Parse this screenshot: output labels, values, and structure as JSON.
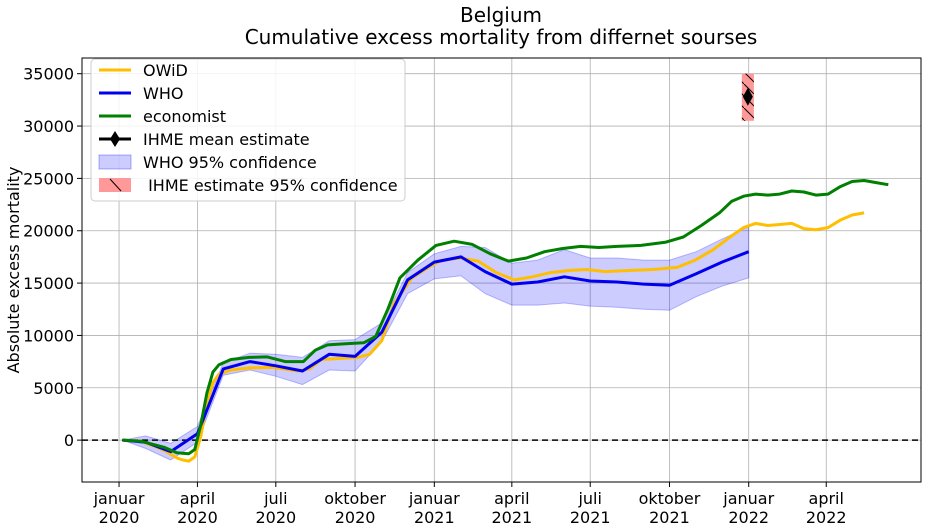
{
  "chart_data": {
    "type": "line",
    "title": "Belgium",
    "subtitle": "Cumulative excess mortality from differnet sourses",
    "ylabel": "Absolute excess mortality",
    "xlabel": "",
    "xlim": [
      "2019-11-19",
      "2022-07-20"
    ],
    "ylim": [
      -4000,
      36500
    ],
    "grid": true,
    "legend_position": "top-left",
    "y_ticks": [
      0,
      5000,
      10000,
      15000,
      20000,
      25000,
      30000,
      35000
    ],
    "x_ticks": [
      {
        "date": "2020-01-01",
        "line1": "januar",
        "line2": "2020"
      },
      {
        "date": "2020-04-01",
        "line1": "april",
        "line2": "2020"
      },
      {
        "date": "2020-07-01",
        "line1": "juli",
        "line2": "2020"
      },
      {
        "date": "2020-10-01",
        "line1": "oktober",
        "line2": "2020"
      },
      {
        "date": "2021-01-01",
        "line1": "januar",
        "line2": "2021"
      },
      {
        "date": "2021-04-01",
        "line1": "april",
        "line2": "2021"
      },
      {
        "date": "2021-07-01",
        "line1": "juli",
        "line2": "2021"
      },
      {
        "date": "2021-10-01",
        "line1": "oktober",
        "line2": "2021"
      },
      {
        "date": "2022-01-01",
        "line1": "januar",
        "line2": "2022"
      },
      {
        "date": "2022-04-01",
        "line1": "april",
        "line2": "2022"
      }
    ],
    "zero_line": {
      "y": 0,
      "style": "dashed",
      "color": "#000000"
    },
    "series": [
      {
        "name": "OWiD",
        "color": "#FFBF00",
        "points": [
          [
            "2020-01-05",
            0
          ],
          [
            "2020-01-26",
            -100
          ],
          [
            "2020-02-09",
            -500
          ],
          [
            "2020-02-23",
            -1000
          ],
          [
            "2020-03-08",
            -1700
          ],
          [
            "2020-03-15",
            -1900
          ],
          [
            "2020-03-22",
            -2000
          ],
          [
            "2020-03-29",
            -1600
          ],
          [
            "2020-04-05",
            400
          ],
          [
            "2020-04-12",
            3500
          ],
          [
            "2020-04-19",
            5500
          ],
          [
            "2020-04-26",
            6300
          ],
          [
            "2020-05-10",
            6700
          ],
          [
            "2020-05-31",
            6900
          ],
          [
            "2020-06-28",
            6950
          ],
          [
            "2020-07-26",
            6600
          ],
          [
            "2020-08-09",
            6800
          ],
          [
            "2020-08-23",
            7700
          ],
          [
            "2020-09-13",
            7800
          ],
          [
            "2020-10-04",
            7900
          ],
          [
            "2020-10-18",
            8200
          ],
          [
            "2020-11-01",
            9500
          ],
          [
            "2020-11-15",
            13000
          ],
          [
            "2020-12-06",
            15500
          ],
          [
            "2020-12-27",
            16600
          ],
          [
            "2021-01-10",
            17200
          ],
          [
            "2021-01-31",
            17400
          ],
          [
            "2021-02-21",
            17100
          ],
          [
            "2021-03-14",
            16000
          ],
          [
            "2021-04-04",
            15300
          ],
          [
            "2021-04-25",
            15600
          ],
          [
            "2021-05-16",
            16000
          ],
          [
            "2021-06-06",
            16200
          ],
          [
            "2021-06-27",
            16300
          ],
          [
            "2021-07-18",
            16100
          ],
          [
            "2021-08-15",
            16200
          ],
          [
            "2021-09-12",
            16300
          ],
          [
            "2021-10-10",
            16500
          ],
          [
            "2021-10-31",
            17200
          ],
          [
            "2021-11-21",
            18200
          ],
          [
            "2021-12-12",
            19500
          ],
          [
            "2021-12-26",
            20300
          ],
          [
            "2022-01-09",
            20700
          ],
          [
            "2022-01-23",
            20500
          ],
          [
            "2022-02-06",
            20600
          ],
          [
            "2022-02-20",
            20700
          ],
          [
            "2022-03-06",
            20200
          ],
          [
            "2022-03-20",
            20100
          ],
          [
            "2022-04-03",
            20300
          ],
          [
            "2022-04-17",
            21000
          ],
          [
            "2022-05-01",
            21500
          ],
          [
            "2022-05-15",
            21700
          ]
        ]
      },
      {
        "name": "WHO",
        "color": "#0000EE",
        "points": [
          [
            "2020-01-05",
            0
          ],
          [
            "2020-02-01",
            -200
          ],
          [
            "2020-03-01",
            -1100
          ],
          [
            "2020-04-01",
            600
          ],
          [
            "2020-05-01",
            6800
          ],
          [
            "2020-06-01",
            7500
          ],
          [
            "2020-07-01",
            7100
          ],
          [
            "2020-08-01",
            6600
          ],
          [
            "2020-09-01",
            8200
          ],
          [
            "2020-10-01",
            8000
          ],
          [
            "2020-11-01",
            10300
          ],
          [
            "2020-12-01",
            15300
          ],
          [
            "2021-01-01",
            17000
          ],
          [
            "2021-02-01",
            17500
          ],
          [
            "2021-03-01",
            16100
          ],
          [
            "2021-04-01",
            14900
          ],
          [
            "2021-05-01",
            15100
          ],
          [
            "2021-06-01",
            15600
          ],
          [
            "2021-07-01",
            15200
          ],
          [
            "2021-08-01",
            15100
          ],
          [
            "2021-09-01",
            14900
          ],
          [
            "2021-10-01",
            14800
          ],
          [
            "2021-11-01",
            15900
          ],
          [
            "2021-12-01",
            17000
          ],
          [
            "2022-01-01",
            18000
          ]
        ]
      },
      {
        "name": "economist",
        "color": "#008000",
        "points": [
          [
            "2020-01-05",
            0
          ],
          [
            "2020-01-26",
            -100
          ],
          [
            "2020-02-09",
            -400
          ],
          [
            "2020-02-23",
            -700
          ],
          [
            "2020-03-08",
            -1200
          ],
          [
            "2020-03-22",
            -1300
          ],
          [
            "2020-03-29",
            -900
          ],
          [
            "2020-04-05",
            1500
          ],
          [
            "2020-04-12",
            4500
          ],
          [
            "2020-04-19",
            6500
          ],
          [
            "2020-04-26",
            7200
          ],
          [
            "2020-05-10",
            7700
          ],
          [
            "2020-05-31",
            7900
          ],
          [
            "2020-06-21",
            7950
          ],
          [
            "2020-07-12",
            7500
          ],
          [
            "2020-08-02",
            7500
          ],
          [
            "2020-08-16",
            8600
          ],
          [
            "2020-08-30",
            9100
          ],
          [
            "2020-09-20",
            9200
          ],
          [
            "2020-10-11",
            9300
          ],
          [
            "2020-10-25",
            9900
          ],
          [
            "2020-11-08",
            12500
          ],
          [
            "2020-11-22",
            15500
          ],
          [
            "2020-12-13",
            17200
          ],
          [
            "2021-01-03",
            18600
          ],
          [
            "2021-01-24",
            19000
          ],
          [
            "2021-02-14",
            18700
          ],
          [
            "2021-03-07",
            17800
          ],
          [
            "2021-03-28",
            17100
          ],
          [
            "2021-04-18",
            17400
          ],
          [
            "2021-05-09",
            18000
          ],
          [
            "2021-05-30",
            18300
          ],
          [
            "2021-06-20",
            18500
          ],
          [
            "2021-07-11",
            18400
          ],
          [
            "2021-08-01",
            18500
          ],
          [
            "2021-08-29",
            18600
          ],
          [
            "2021-09-26",
            18900
          ],
          [
            "2021-10-17",
            19400
          ],
          [
            "2021-11-07",
            20500
          ],
          [
            "2021-11-28",
            21700
          ],
          [
            "2021-12-12",
            22800
          ],
          [
            "2021-12-26",
            23300
          ],
          [
            "2022-01-09",
            23500
          ],
          [
            "2022-01-23",
            23400
          ],
          [
            "2022-02-06",
            23500
          ],
          [
            "2022-02-20",
            23800
          ],
          [
            "2022-03-06",
            23700
          ],
          [
            "2022-03-20",
            23400
          ],
          [
            "2022-04-03",
            23500
          ],
          [
            "2022-04-17",
            24200
          ],
          [
            "2022-05-01",
            24700
          ],
          [
            "2022-05-15",
            24800
          ],
          [
            "2022-05-29",
            24600
          ],
          [
            "2022-06-12",
            24400
          ]
        ]
      }
    ],
    "who_confidence": {
      "name": "WHO 95% confidence",
      "color": "#0000FF",
      "opacity": 0.2,
      "upper": [
        [
          "2020-01-05",
          0
        ],
        [
          "2020-02-01",
          400
        ],
        [
          "2020-03-01",
          -300
        ],
        [
          "2020-04-01",
          1300
        ],
        [
          "2020-05-01",
          7400
        ],
        [
          "2020-06-01",
          8300
        ],
        [
          "2020-07-01",
          8200
        ],
        [
          "2020-08-01",
          7900
        ],
        [
          "2020-09-01",
          9500
        ],
        [
          "2020-10-01",
          9600
        ],
        [
          "2020-11-01",
          11200
        ],
        [
          "2020-12-01",
          16000
        ],
        [
          "2021-01-01",
          17800
        ],
        [
          "2021-02-01",
          18500
        ],
        [
          "2021-03-01",
          18400
        ],
        [
          "2021-04-01",
          16900
        ],
        [
          "2021-05-01",
          17200
        ],
        [
          "2021-06-01",
          18200
        ],
        [
          "2021-07-01",
          17400
        ],
        [
          "2021-08-01",
          17400
        ],
        [
          "2021-09-01",
          17200
        ],
        [
          "2021-10-01",
          17200
        ],
        [
          "2021-11-01",
          18000
        ],
        [
          "2021-12-01",
          19200
        ],
        [
          "2022-01-01",
          20400
        ]
      ],
      "lower": [
        [
          "2020-01-05",
          0
        ],
        [
          "2020-02-01",
          -800
        ],
        [
          "2020-03-01",
          -1900
        ],
        [
          "2020-04-01",
          -200
        ],
        [
          "2020-05-01",
          6200
        ],
        [
          "2020-06-01",
          6700
        ],
        [
          "2020-07-01",
          6100
        ],
        [
          "2020-08-01",
          5300
        ],
        [
          "2020-09-01",
          6700
        ],
        [
          "2020-10-01",
          6600
        ],
        [
          "2020-11-01",
          9400
        ],
        [
          "2020-12-01",
          14000
        ],
        [
          "2021-01-01",
          15400
        ],
        [
          "2021-02-01",
          15700
        ],
        [
          "2021-03-01",
          14000
        ],
        [
          "2021-04-01",
          12900
        ],
        [
          "2021-05-01",
          12900
        ],
        [
          "2021-06-01",
          13100
        ],
        [
          "2021-07-01",
          12800
        ],
        [
          "2021-08-01",
          12700
        ],
        [
          "2021-09-01",
          12500
        ],
        [
          "2021-10-01",
          12400
        ],
        [
          "2021-11-01",
          13700
        ],
        [
          "2021-12-01",
          14700
        ],
        [
          "2022-01-01",
          15500
        ]
      ]
    },
    "ihme_estimate": {
      "name": "IHME mean estimate",
      "color": "#000000",
      "date": "2021-12-31",
      "mean": 32800,
      "ci_name": " IHME estimate 95% confidence",
      "ci_color": "#FF9999",
      "ci_date_range": [
        "2021-12-24",
        "2022-01-07"
      ],
      "ci_range": [
        30500,
        35000
      ]
    }
  }
}
